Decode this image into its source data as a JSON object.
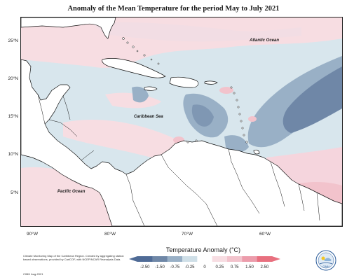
{
  "title": "Anomaly of the Mean Temperature for the period May to July 2021",
  "map": {
    "lat_labels": [
      "25°N",
      "20°N",
      "15°N",
      "10°N",
      "5°N"
    ],
    "lon_labels": [
      "90°W",
      "80°W",
      "70°W",
      "60°W"
    ],
    "region_labels": {
      "atlantic": "Atlantic Ocean",
      "caribbean": "Caribbean Sea",
      "pacific": "Pacific Ocean"
    },
    "colors": {
      "land": "#ffffff",
      "coast": "#111111",
      "neg_strong": "#6f87a7",
      "neg_med": "#99b0c6",
      "neg_light": "#cfdfe7",
      "pos_light": "#f7dde2",
      "pos_med": "#f2c3cc",
      "pos_strong": "#ec9cab"
    }
  },
  "legend": {
    "title": "Temperature Anomaly (°C)",
    "ticks": [
      "-2.50",
      "-1.50",
      "-0.75",
      "-0.25",
      "0",
      "0.25",
      "0.75",
      "1.50",
      "2.50"
    ],
    "colors": [
      "#4f6b96",
      "#6f87a7",
      "#99b0c6",
      "#cfdfe7",
      "#ffffff",
      "#f7dde2",
      "#f2c3cc",
      "#ec9cab",
      "#e8707f"
    ]
  },
  "credits": {
    "text": "Climate Monitoring Map of the Caribbean Region. Created by aggregating station based observations, provided by CariCOF, with NCEP/NCAR Reanalysis Data.",
    "stamp": "CIMH Aug-2021"
  },
  "logo": {
    "text": "CIMH"
  }
}
